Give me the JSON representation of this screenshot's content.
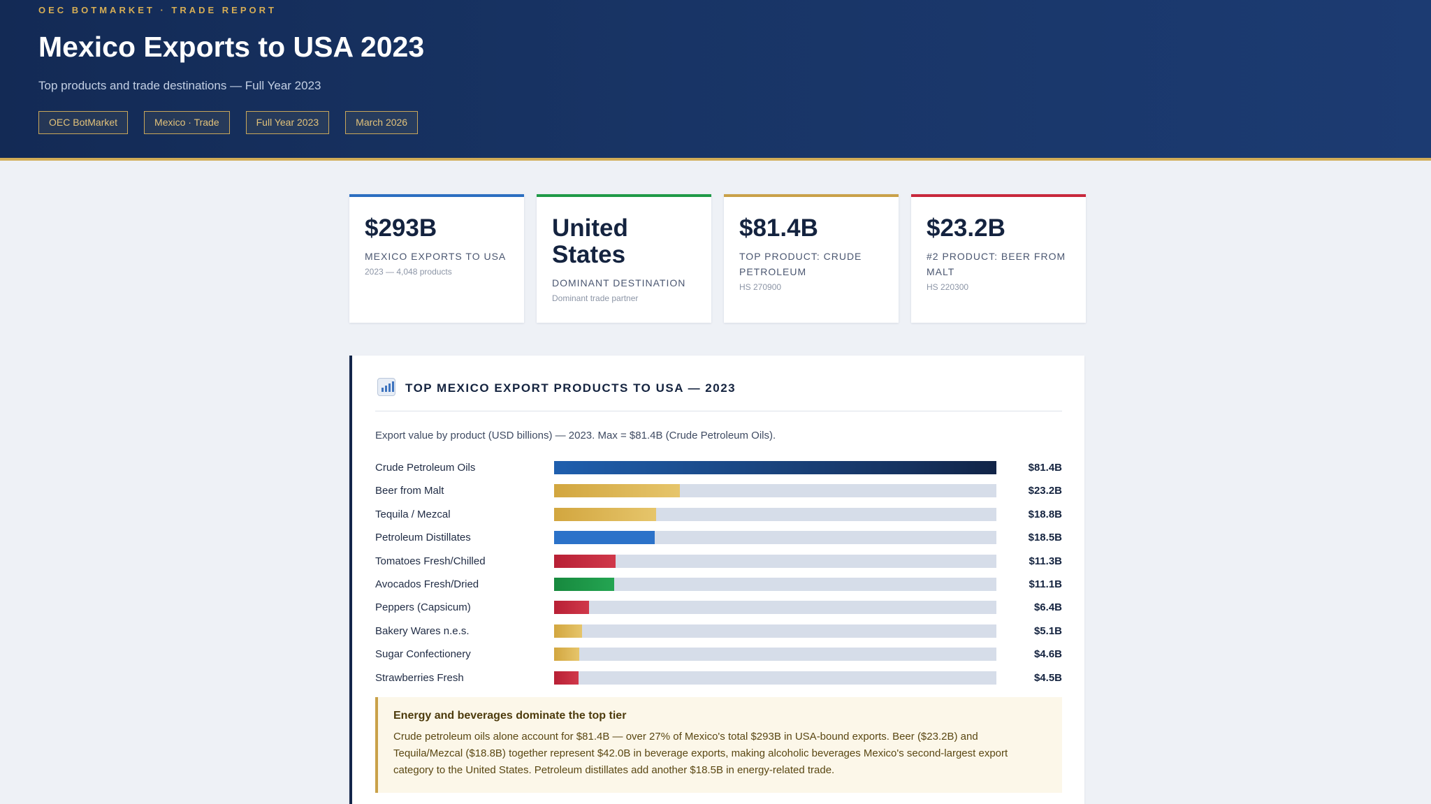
{
  "header": {
    "eyebrow": "OEC BOTMARKET · TRADE REPORT",
    "title": "Mexico Exports to USA 2023",
    "subtitle": "Top products and trade destinations — Full Year 2023",
    "tags": [
      "OEC BotMarket",
      "Mexico · Trade",
      "Full Year 2023",
      "March 2026"
    ]
  },
  "cards": [
    {
      "value": "$293B",
      "label": "MEXICO EXPORTS TO USA",
      "sub": "2023 — 4,048 products",
      "accent": "#2c6fc1"
    },
    {
      "value": "United States",
      "label": "DOMINANT DESTINATION",
      "sub": "Dominant trade partner",
      "accent": "#1f9a47"
    },
    {
      "value": "$81.4B",
      "label": "TOP PRODUCT: CRUDE PETROLEUM",
      "sub": "HS 270900",
      "accent": "#c9a149"
    },
    {
      "value": "$23.2B",
      "label": "#2 PRODUCT: BEER FROM MALT",
      "sub": "HS 220300",
      "accent": "#c8283c"
    }
  ],
  "panel": {
    "title": "TOP MEXICO EXPORT PRODUCTS TO USA — 2023",
    "icon": "bar-chart-icon",
    "description": "Export value by product (USD billions) — 2023. Max = $81.4B (Crude Petroleum Oils)."
  },
  "chart_data": {
    "type": "bar",
    "orientation": "horizontal",
    "xlim": [
      0,
      81.4
    ],
    "categories": [
      "Crude Petroleum Oils",
      "Beer from Malt",
      "Tequila / Mezcal",
      "Petroleum Distillates",
      "Tomatoes Fresh/Chilled",
      "Avocados Fresh/Dried",
      "Peppers (Capsicum)",
      "Bakery Wares n.e.s.",
      "Sugar Confectionery",
      "Strawberries Fresh"
    ],
    "values": [
      81.4,
      23.2,
      18.8,
      18.5,
      11.3,
      11.1,
      6.4,
      5.1,
      4.6,
      4.5
    ],
    "value_labels": [
      "$81.4B",
      "$23.2B",
      "$18.8B",
      "$18.5B",
      "$11.3B",
      "$11.1B",
      "$6.4B",
      "$5.1B",
      "$4.6B",
      "$4.5B"
    ],
    "colors": [
      "navy-gradient",
      "gold",
      "gold",
      "blue",
      "red",
      "green",
      "red",
      "gold",
      "gold",
      "red"
    ],
    "palette": {
      "navy-gradient": "#1f5fae",
      "blue": "#2b72c9",
      "gold": "#d9b04d",
      "red": "#c42a3c",
      "green": "#1c9545",
      "track": "#d6dde9"
    }
  },
  "callout": {
    "title": "Energy and beverages dominate the top tier",
    "body": "Crude petroleum oils alone account for $81.4B — over 27% of Mexico's total $293B in USA-bound exports. Beer ($23.2B) and Tequila/Mezcal ($18.8B) together represent $42.0B in beverage exports, making alcoholic beverages Mexico's second-largest export category to the United States. Petroleum distillates add another $18.5B in energy-related trade."
  }
}
